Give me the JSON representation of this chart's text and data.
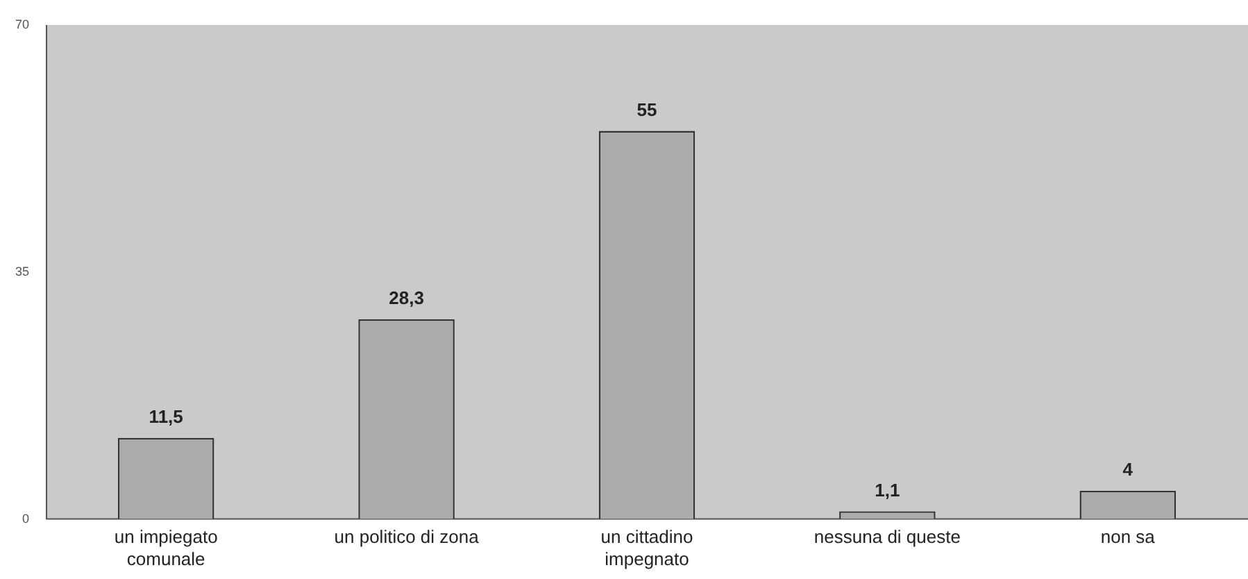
{
  "chart_data": {
    "type": "bar",
    "categories": [
      "un impiegato comunale",
      "un politico di zona",
      "un cittadino impegnato",
      "nessuna di queste",
      "non sa"
    ],
    "values": [
      11.5,
      28.3,
      55,
      1.1,
      4
    ],
    "value_labels": [
      "11,5",
      "28,3",
      "55",
      "1,1",
      "4"
    ],
    "color": "#ababab",
    "ylim": [
      0,
      70
    ],
    "yticks": [
      0,
      35,
      70
    ],
    "grid": false,
    "legend": false
  }
}
